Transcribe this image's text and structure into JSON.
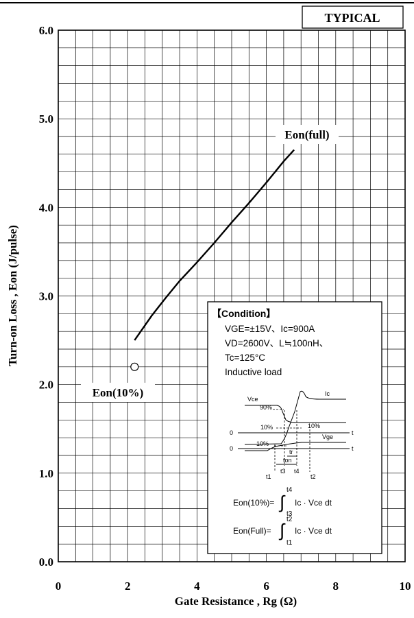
{
  "chart_data": {
    "type": "line",
    "badge": "TYPICAL",
    "xlabel": "Gate Resistance , Rg (Ω)",
    "ylabel": "Turn-on Loss , Eon (J/pulse)",
    "xlim": [
      0,
      10
    ],
    "ylim": [
      0,
      6
    ],
    "x_ticks": [
      "0",
      "2",
      "4",
      "6",
      "8",
      "10"
    ],
    "y_ticks": [
      "0.0",
      "1.0",
      "2.0",
      "3.0",
      "4.0",
      "5.0",
      "6.0"
    ],
    "grid": true,
    "series": [
      {
        "name": "Eon(full)",
        "x": [
          2.2,
          2.7,
          3.1,
          3.5,
          4.0,
          4.5,
          5.0,
          5.5,
          6.0,
          6.5,
          6.8
        ],
        "y": [
          2.5,
          2.78,
          2.98,
          3.17,
          3.38,
          3.6,
          3.83,
          4.05,
          4.28,
          4.52,
          4.65
        ]
      },
      {
        "name": "Eon(10%)",
        "x": [
          2.2
        ],
        "y": [
          2.2
        ]
      }
    ],
    "condition": {
      "title": "【Condition】",
      "lines": [
        "VGE=±15V、Ic=900A",
        "VD=2600V、L≒100nH、",
        "Tc=125°C",
        "Inductive load"
      ],
      "waveform": {
        "vce": "Vce",
        "ic": "Ic",
        "vge": "Vge",
        "p90": "90%",
        "p10a": "10%",
        "p10b": "10%",
        "p10c": "10%",
        "zero1": "0",
        "zero2": "0",
        "t_axis1": "t",
        "t_axis2": "t",
        "tr": "tr",
        "ton": "ton",
        "t1": "t1",
        "t2": "t2",
        "t3": "t3",
        "t4": "t4"
      },
      "formula1": {
        "lhs": "Eon(10%)=",
        "integral": "∫",
        "upper": "t4",
        "lower": "t3",
        "rhs": "Ic · Vce dt"
      },
      "formula2": {
        "lhs": "Eon(Full)=",
        "integral": "∫",
        "upper": "t2",
        "lower": "t1",
        "rhs": "Ic · Vce dt"
      }
    }
  }
}
